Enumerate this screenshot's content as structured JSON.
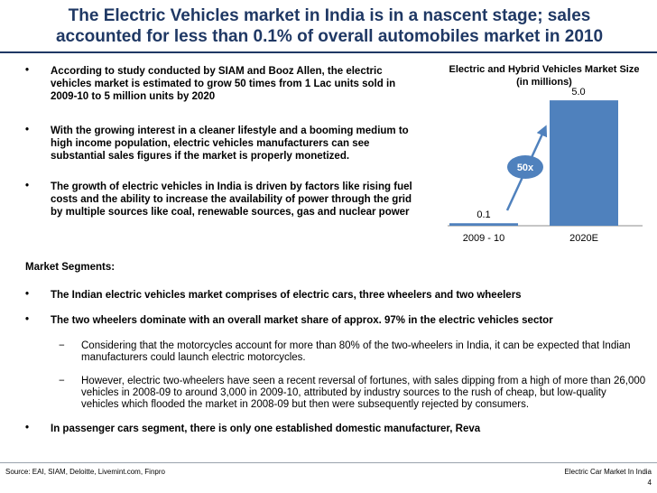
{
  "title_line1": "The Electric Vehicles market in India is in a nascent stage; sales",
  "title_line2": "accounted for less than 0.1% of overall automobiles market in 2010",
  "bullet_char": "•",
  "dash_char": "−",
  "top_bullets": [
    "According to study conducted by SIAM and Booz Allen, the electric vehicles market is estimated to grow 50 times from 1 Lac units sold in 2009-10 to 5 million units by 2020",
    "With the growing interest in a cleaner lifestyle and a booming medium to high income population, electric vehicles manufacturers can see substantial sales figures if the market is properly monetized.",
    "The growth of electric vehicles in India is driven by factors like rising fuel costs and the ability to increase the availability of power through the grid by multiple sources like coal, renewable sources, gas and nuclear power"
  ],
  "segments_title": "Market Segments:",
  "segment_bullets": [
    "The Indian electric vehicles market comprises of electric cars, three wheelers and two wheelers",
    "The two wheelers dominate with an overall market share of approx. 97% in the electric vehicles sector"
  ],
  "sub_bullets": [
    "Considering that the motorcycles account for more than 80% of the two-wheelers in India, it can be expected that Indian manufacturers could launch electric motorcycles.",
    "However, electric two-wheelers have seen a recent reversal of fortunes, with sales dipping from a high of more than 26,000 vehicles in 2008-09 to around 3,000 in 2009-10, attributed by industry sources to the rush of cheap, but low-quality vehicles which flooded the market in 2008-09 but then were subsequently rejected by consumers."
  ],
  "last_bullet": "In passenger cars segment, there is only one established domestic manufacturer, Reva",
  "chart_data": {
    "type": "bar",
    "title": "Electric and Hybrid Vehicles Market Size",
    "subtitle": "(in millions)",
    "categories": [
      "2009 - 10",
      "2020E"
    ],
    "values": [
      0.1,
      5.0
    ],
    "value_labels": [
      "0.1",
      "5.0"
    ],
    "ylim": [
      0,
      5.4
    ],
    "annotation": "50x",
    "bar_color": "#4f81bd",
    "annotation_color": "#4f81bd",
    "grid": false
  },
  "footer": {
    "source": "Source: EAI, SIAM, Deloitte, Livemint.com, Finpro",
    "deck_title": "Electric Car Market In India",
    "page_number": "4"
  }
}
